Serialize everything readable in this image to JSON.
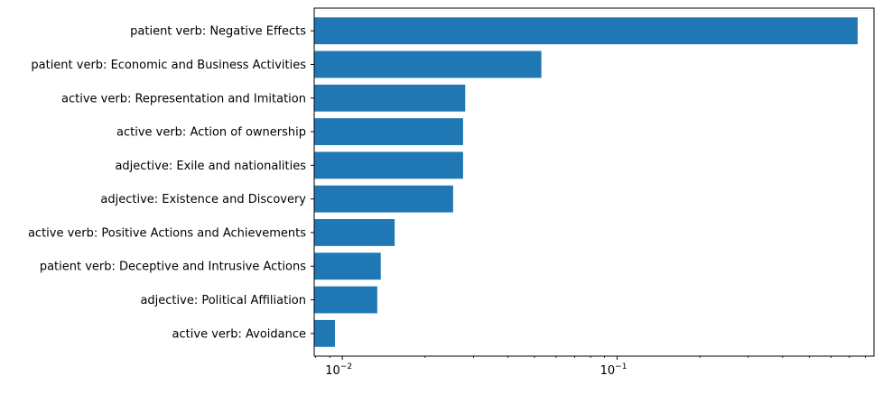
{
  "chart_data": {
    "type": "bar",
    "orientation": "horizontal",
    "x_scale": "log",
    "xlim": [
      0.0079,
      0.86
    ],
    "grid": false,
    "legend": "none",
    "bar_color": "#1f77b4",
    "title": "",
    "xlabel": "",
    "ylabel": "",
    "categories": [
      "patient verb: Negative Effects",
      "patient verb: Economic and Business Activities",
      "active verb: Representation and Imitation",
      "active verb: Action of ownership",
      "adjective: Exile and nationalities",
      "adjective: Existence and Discovery",
      "active verb: Positive Actions and Achievements",
      "patient verb: Deceptive and Intrusive Actions",
      "adjective: Political Affiliation",
      "active verb: Avoidance"
    ],
    "values": [
      0.75,
      0.053,
      0.028,
      0.0275,
      0.0275,
      0.0253,
      0.0155,
      0.0138,
      0.0134,
      0.0094
    ],
    "x_major_ticks": [
      {
        "value": 0.01,
        "base": "10",
        "exp": "−2"
      },
      {
        "value": 0.1,
        "base": "10",
        "exp": "−1"
      }
    ],
    "x_minor_ticks": [
      0.008,
      0.009,
      0.02,
      0.03,
      0.04,
      0.05,
      0.06,
      0.07,
      0.08,
      0.09,
      0.2,
      0.3,
      0.4,
      0.5,
      0.6,
      0.7,
      0.8
    ]
  }
}
